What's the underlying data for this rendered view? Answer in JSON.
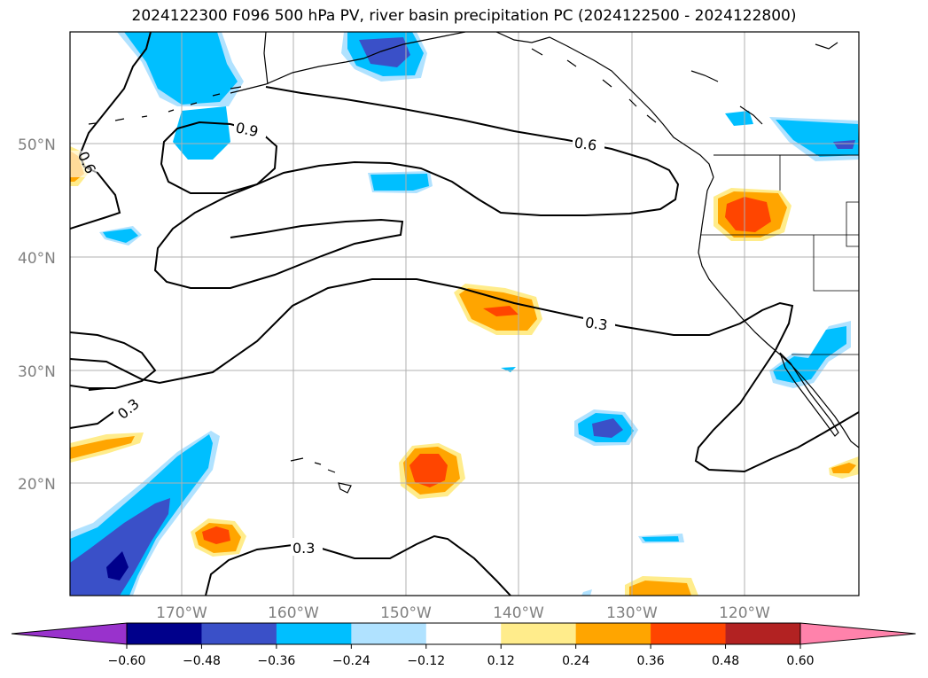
{
  "title": "2024122300 F096 500 hPa PV, river basin precipitation PC (2024122500 - 2024122800)",
  "lat_labels": [
    "50°N",
    "40°N",
    "30°N",
    "20°N"
  ],
  "lon_labels": [
    "170°W",
    "160°W",
    "150°W",
    "140°W",
    "130°W",
    "120°W"
  ],
  "contour_labels": [
    "0.9",
    "0.6",
    "0.6",
    "0.3",
    "0.3",
    "0.3"
  ],
  "colorbar": {
    "ticks": [
      "−0.60",
      "−0.48",
      "−0.36",
      "−0.24",
      "−0.12",
      "0.12",
      "0.24",
      "0.36",
      "0.48",
      "0.60"
    ],
    "colors": {
      "under": "#9932cc",
      "bins": [
        "#00008b",
        "#3a50c8",
        "#00bfff",
        "#b0e2ff",
        "#ffffff",
        "#ffec8b",
        "#ffa500",
        "#ff4500",
        "#b22222"
      ],
      "over": "#ff82ab"
    }
  },
  "colors": {
    "neg_light": "#b0e2ff",
    "neg_mid": "#00bfff",
    "neg_strong": "#3a50c8",
    "neg_max": "#00008b",
    "pos_light": "#ffec8b",
    "pos_mid": "#ffa500",
    "pos_strong": "#ff4500"
  }
}
